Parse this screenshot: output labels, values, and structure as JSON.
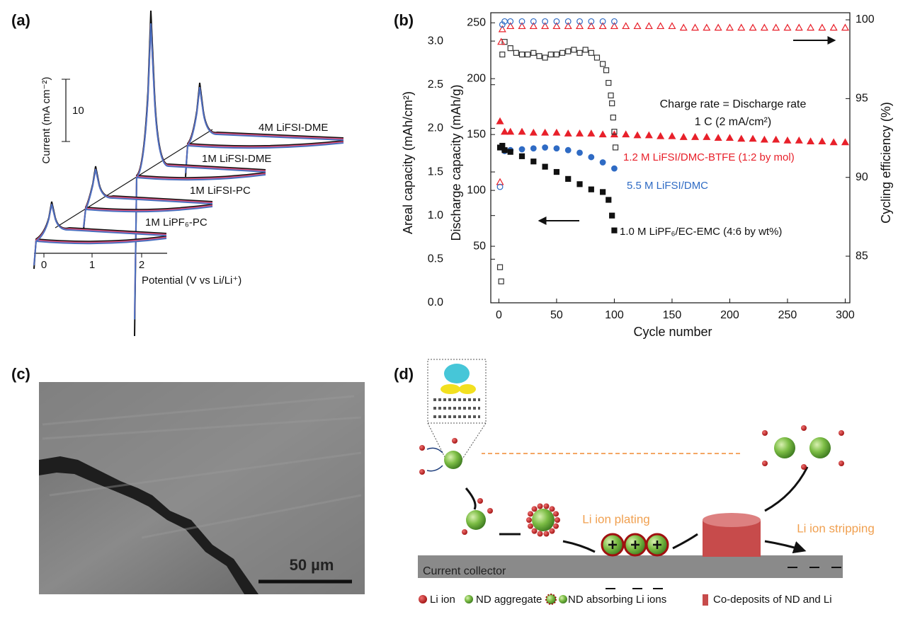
{
  "panel_a": {
    "label": "(a)",
    "ylabel": "Current (mA cm⁻²)",
    "scale_bar": "10",
    "xlabel": "Potential (V vs Li/Li⁺)",
    "xticks": [
      "0",
      "1",
      "2"
    ],
    "curves": [
      "4M LiFSI-DME",
      "1M LiFSI-DME",
      "1M LiFSI-PC",
      "1M LiPF₆-PC"
    ]
  },
  "chart_data": {
    "type": "scatter",
    "label": "(b)",
    "xlabel": "Cycle number",
    "ylabel": "Areal capacity (mAh/cm²)",
    "ylabel_inner": "Discharge capacity (mAh/g)",
    "y2label": "Cycling efficiency (%)",
    "annotations": [
      "Charge rate = Discharge rate",
      "1 C (2 mA/cm²)"
    ],
    "xlim": [
      -7,
      304
    ],
    "xticks": [
      0,
      50,
      100,
      150,
      200,
      250,
      300
    ],
    "ylim": [
      0,
      3.325
    ],
    "yticks": [
      {
        "value": 0,
        "label": "0.0"
      },
      0.5,
      {
        "value": 1,
        "label": "1.0"
      },
      1.5,
      {
        "value": 2,
        "label": "2.0"
      },
      2.5,
      {
        "value": 3,
        "label": "3.0"
      }
    ],
    "ylim_inner": [
      -0.6,
      259
    ],
    "yticks_inner": [
      50,
      100,
      150,
      200,
      250
    ],
    "y2lim": [
      82.04,
      100.45
    ],
    "y2ticks": [
      85,
      90,
      95,
      100
    ],
    "series": [
      {
        "name": "1.2 M LiFSI/DMC-BTFE (1:2 by mol)",
        "color": "#e8202a",
        "marker": "triangle",
        "filled": true,
        "x": [
          1,
          5,
          10,
          20,
          30,
          40,
          50,
          60,
          70,
          80,
          90,
          100,
          110,
          120,
          130,
          140,
          150,
          160,
          170,
          180,
          190,
          200,
          210,
          220,
          230,
          240,
          250,
          260,
          270,
          280,
          290,
          300
        ],
        "values": [
          2.08,
          1.96,
          1.96,
          1.96,
          1.95,
          1.95,
          1.95,
          1.94,
          1.94,
          1.94,
          1.93,
          1.93,
          1.93,
          1.92,
          1.92,
          1.91,
          1.91,
          1.9,
          1.9,
          1.9,
          1.89,
          1.89,
          1.88,
          1.88,
          1.87,
          1.87,
          1.86,
          1.86,
          1.85,
          1.85,
          1.84,
          1.84
        ]
      },
      {
        "name": "5.5 M LiFSI/DMC",
        "color": "#2f6bc4",
        "marker": "circle",
        "filled": true,
        "x": [
          5,
          10,
          20,
          30,
          40,
          50,
          60,
          70,
          80,
          90,
          100
        ],
        "values": [
          1.74,
          1.75,
          1.76,
          1.77,
          1.78,
          1.77,
          1.75,
          1.72,
          1.67,
          1.61,
          1.54
        ]
      },
      {
        "name": "1.0 M LiPF₆/EC-EMC (4:6 by wt%)",
        "color": "#111111",
        "marker": "square",
        "filled": true,
        "x": [
          1,
          3,
          5,
          10,
          20,
          30,
          40,
          50,
          60,
          70,
          80,
          90,
          95,
          98,
          100
        ],
        "values": [
          1.78,
          1.8,
          1.75,
          1.73,
          1.68,
          1.62,
          1.56,
          1.5,
          1.42,
          1.36,
          1.3,
          1.27,
          1.18,
          1.0,
          0.83
        ]
      },
      {
        "color": "#333333",
        "marker": "square",
        "filled": false,
        "axis": "y2",
        "x": [
          1,
          2,
          3,
          5,
          10,
          15,
          20,
          25,
          30,
          35,
          40,
          45,
          50,
          55,
          60,
          65,
          70,
          75,
          80,
          85,
          90,
          93,
          95,
          97,
          98,
          99,
          100,
          101
        ],
        "values": [
          84.3,
          83.4,
          97.8,
          98.6,
          98.2,
          97.9,
          97.8,
          97.8,
          97.9,
          97.7,
          97.6,
          97.8,
          97.8,
          97.9,
          98.0,
          98.1,
          97.9,
          98.1,
          97.9,
          97.6,
          97.2,
          96.8,
          96.0,
          95.2,
          94.7,
          93.8,
          92.9,
          91.9
        ]
      },
      {
        "color": "#e8202a",
        "marker": "triangle",
        "filled": false,
        "axis": "y2",
        "x": [
          1,
          2,
          3,
          10,
          20,
          30,
          40,
          50,
          60,
          70,
          80,
          90,
          100,
          110,
          120,
          130,
          140,
          150,
          160,
          170,
          180,
          190,
          200,
          210,
          220,
          230,
          240,
          250,
          260,
          270,
          280,
          290,
          300
        ],
        "values": [
          89.7,
          98.6,
          99.4,
          99.6,
          99.6,
          99.6,
          99.6,
          99.6,
          99.6,
          99.6,
          99.6,
          99.6,
          99.6,
          99.6,
          99.6,
          99.6,
          99.6,
          99.6,
          99.5,
          99.5,
          99.5,
          99.5,
          99.5,
          99.5,
          99.5,
          99.5,
          99.5,
          99.5,
          99.5,
          99.5,
          99.5,
          99.5,
          99.5
        ]
      },
      {
        "color": "#2f6bc4",
        "marker": "circle",
        "filled": false,
        "axis": "y2",
        "x": [
          1,
          3,
          5,
          10,
          20,
          30,
          40,
          50,
          60,
          70,
          80,
          90,
          100
        ],
        "values": [
          89.4,
          99.7,
          99.9,
          99.9,
          99.9,
          99.9,
          99.9,
          99.9,
          99.9,
          99.9,
          99.9,
          99.9,
          99.9
        ]
      }
    ]
  },
  "panel_c": {
    "label": "(c)",
    "scale_bar": "50 µm"
  },
  "panel_d": {
    "label": "(d)",
    "plating": "Li ion plating",
    "stripping": "Li ion stripping",
    "collector": "Current collector",
    "legend": [
      "Li ion",
      "ND aggregate",
      "ND absorbing Li ions",
      "Co-deposits of ND and Li"
    ]
  }
}
